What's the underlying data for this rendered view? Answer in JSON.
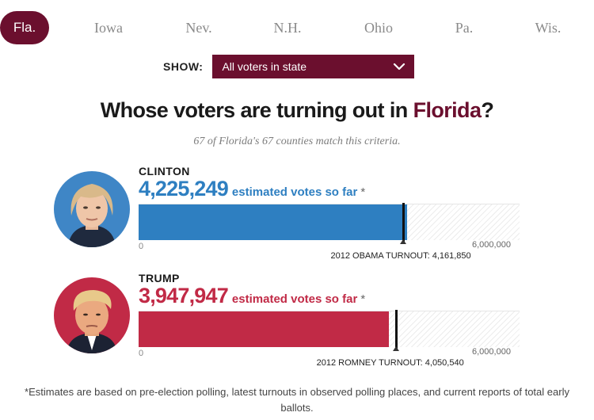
{
  "tabs": [
    {
      "label": "Fla.",
      "active": true
    },
    {
      "label": "Iowa",
      "active": false
    },
    {
      "label": "Nev.",
      "active": false
    },
    {
      "label": "N.H.",
      "active": false
    },
    {
      "label": "Ohio",
      "active": false
    },
    {
      "label": "Pa.",
      "active": false
    },
    {
      "label": "Wis.",
      "active": false
    }
  ],
  "filter": {
    "label": "SHOW:",
    "selected": "All voters in state"
  },
  "heading": {
    "prefix": "Whose voters are turning out in ",
    "state": "Florida",
    "suffix": "?"
  },
  "subtitle": "67 of Florida's 67 counties match this criteria.",
  "candidates": [
    {
      "name": "CLINTON",
      "votes": "4,225,249",
      "votes_value": 4225249,
      "votes_label": "estimated votes so far",
      "star": "*",
      "color": "#2e7fc1",
      "axis_min": "0",
      "axis_max": "6,000,000",
      "axis_max_value": 6000000,
      "turnout_label": "2012 OBAMA TURNOUT:",
      "turnout_value": "4,161,850",
      "turnout_number": 4161850
    },
    {
      "name": "TRUMP",
      "votes": "3,947,947",
      "votes_value": 3947947,
      "votes_label": "estimated votes so far",
      "star": "*",
      "color": "#c12a46",
      "axis_min": "0",
      "axis_max": "6,000,000",
      "axis_max_value": 6000000,
      "turnout_label": "2012 ROMNEY TURNOUT:",
      "turnout_value": "4,050,540",
      "turnout_number": 4050540
    }
  ],
  "footnote": "*Estimates are based on pre-election polling, latest turnouts in observed polling places, and current reports of total early ballots.",
  "colors": {
    "accent": "#6b0f2e",
    "clinton": "#2e7fc1",
    "trump": "#c12a46"
  }
}
